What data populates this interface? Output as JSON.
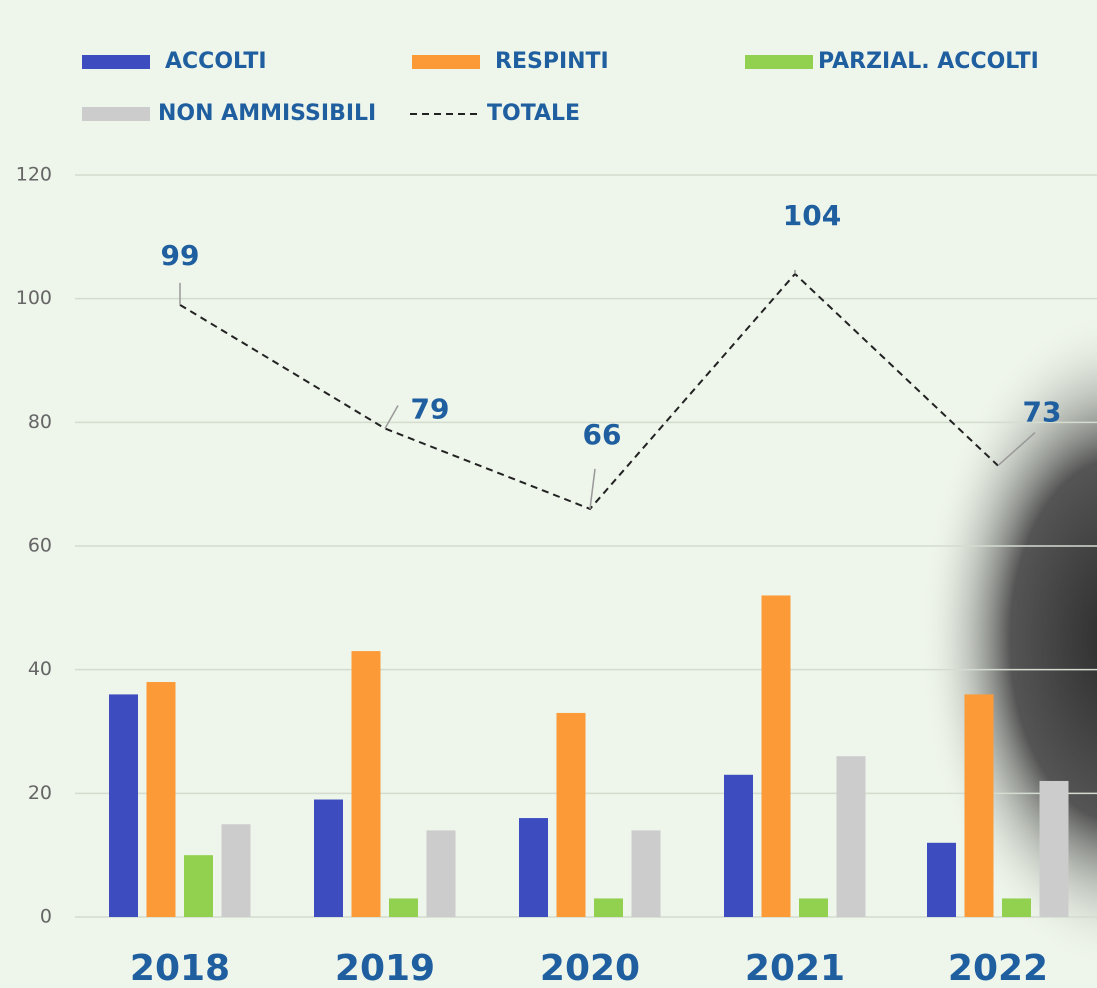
{
  "chart_data": {
    "type": "bar",
    "categories": [
      "2018",
      "2019",
      "2020",
      "2021",
      "2022"
    ],
    "series": [
      {
        "name": "ACCOLTI",
        "color": "#3d4dbf",
        "values": [
          36,
          19,
          16,
          23,
          12
        ]
      },
      {
        "name": "RESPINTI",
        "color": "#fb9a36",
        "values": [
          38,
          43,
          33,
          52,
          36
        ]
      },
      {
        "name": "PARZIAL. ACCOLTI",
        "color": "#92d050",
        "values": [
          10,
          3,
          3,
          3,
          3
        ]
      },
      {
        "name": "NON AMMISSIBILI",
        "color": "#cccccc",
        "values": [
          15,
          14,
          14,
          26,
          22
        ]
      },
      {
        "name": "TOTALE",
        "color": "#222222",
        "type": "line",
        "dashed": true,
        "values": [
          99,
          79,
          66,
          104,
          73
        ]
      }
    ],
    "ylim": [
      0,
      120
    ],
    "yticks": [
      0,
      20,
      40,
      60,
      80,
      100,
      120
    ],
    "grid": true
  }
}
